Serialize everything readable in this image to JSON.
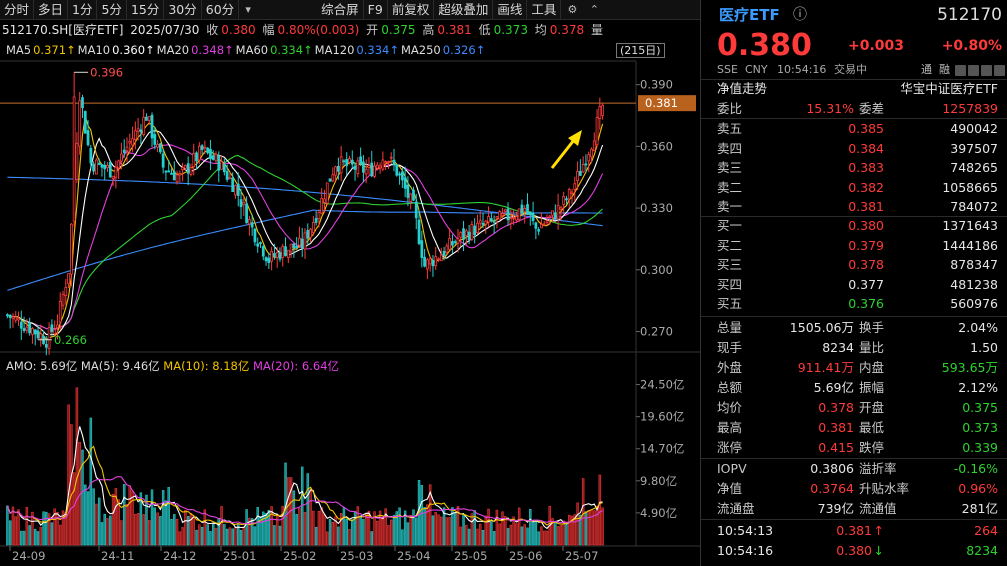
{
  "toolbar": {
    "tabs": [
      "分时",
      "多日",
      "1分",
      "5分",
      "15分",
      "30分",
      "60分"
    ],
    "more_icon": "caret-down-icon",
    "actions": [
      "综合屏",
      "F9",
      "前复权",
      "超级叠加",
      "画线",
      "工具"
    ],
    "icons": [
      "gear-icon",
      "chevron-up-icon"
    ]
  },
  "info": {
    "code": "512170.SH[医疗ETF]",
    "date": "2025/07/30",
    "close_label": "收",
    "close": "0.380",
    "change_label": "幅",
    "change": "0.80%(0.003)",
    "open_label": "开",
    "open": "0.375",
    "high_label": "高",
    "high": "0.381",
    "low_label": "低",
    "low": "0.373",
    "avg_label": "均",
    "avg": "0.378",
    "vol_label": "量"
  },
  "ma_legend": [
    {
      "label": "MA5",
      "value": "0.371↑",
      "color": "#f2c400"
    },
    {
      "label": "MA10",
      "value": "0.360↑",
      "color": "#ffffff"
    },
    {
      "label": "MA20",
      "value": "0.348↑",
      "color": "#e040e0"
    },
    {
      "label": "MA60",
      "value": "0.334↑",
      "color": "#2fd12f"
    },
    {
      "label": "MA120",
      "value": "0.334↑",
      "color": "#3b8cff"
    },
    {
      "label": "MA250",
      "value": "0.326↑",
      "color": "#3b8cff"
    }
  ],
  "days_badge": "(215日)",
  "chart_data": {
    "type": "candlestick",
    "price_axis": {
      "ticks": [
        "0.390",
        "0.360",
        "0.330",
        "0.300",
        "0.270"
      ],
      "range": [
        0.262,
        0.401
      ]
    },
    "current_price_tag": "0.381",
    "annotations": {
      "high": "0.396",
      "low": "0.266"
    },
    "date_ticks": [
      "24-09",
      "24-11",
      "24-12",
      "25-01",
      "25-02",
      "25-03",
      "25-04",
      "25-05",
      "25-06",
      "25-07"
    ],
    "amo": {
      "label": "AMO: 5.69亿",
      "ma5": "MA(5): 9.46亿",
      "ma10": "MA(10): 8.18亿",
      "ma20": "MA(20): 6.64亿",
      "ticks": [
        "24.50亿",
        "19.60亿",
        "14.70亿",
        "9.80亿",
        "4.90亿"
      ],
      "range": [
        0,
        25.5
      ]
    }
  },
  "panel": {
    "name": "医疗ETF",
    "code": "512170",
    "price": "0.380",
    "chg": "+0.003",
    "pct": "+0.80%",
    "exchange": "SSE",
    "currency": "CNY",
    "time": "10:54:16",
    "status": "交易中",
    "tags": [
      "通",
      "融"
    ],
    "trend_label": "净值走势",
    "tracking": "华宝中证医疗ETF",
    "weibi_label": "委比",
    "weibi": "15.31%",
    "weicha_label": "委差",
    "weicha": "1257839",
    "asks": [
      {
        "label": "卖五",
        "price": "0.385",
        "vol": "490042"
      },
      {
        "label": "卖四",
        "price": "0.384",
        "vol": "397507"
      },
      {
        "label": "卖三",
        "price": "0.383",
        "vol": "748265"
      },
      {
        "label": "卖二",
        "price": "0.382",
        "vol": "1058665"
      },
      {
        "label": "卖一",
        "price": "0.381",
        "vol": "784072"
      }
    ],
    "bids": [
      {
        "label": "买一",
        "price": "0.380",
        "vol": "1371643"
      },
      {
        "label": "买二",
        "price": "0.379",
        "vol": "1444186"
      },
      {
        "label": "买三",
        "price": "0.378",
        "vol": "878347"
      },
      {
        "label": "买四",
        "price": "0.377",
        "vol": "481238"
      },
      {
        "label": "买五",
        "price": "0.376",
        "vol": "560976"
      }
    ],
    "stats": [
      {
        "l1": "总量",
        "v1": "1505.06万",
        "c1": "w",
        "l2": "换手",
        "v2": "2.04%",
        "c2": "w"
      },
      {
        "l1": "现手",
        "v1": "8234",
        "c1": "w",
        "l2": "量比",
        "v2": "1.50",
        "c2": "w"
      },
      {
        "l1": "外盘",
        "v1": "911.41万",
        "c1": "r",
        "l2": "内盘",
        "v2": "593.65万",
        "c2": "g"
      },
      {
        "l1": "总额",
        "v1": "5.69亿",
        "c1": "w",
        "l2": "振幅",
        "v2": "2.12%",
        "c2": "w"
      },
      {
        "l1": "均价",
        "v1": "0.378",
        "c1": "r",
        "l2": "开盘",
        "v2": "0.375",
        "c2": "g"
      },
      {
        "l1": "最高",
        "v1": "0.381",
        "c1": "r",
        "l2": "最低",
        "v2": "0.373",
        "c2": "g"
      },
      {
        "l1": "涨停",
        "v1": "0.415",
        "c1": "r",
        "l2": "跌停",
        "v2": "0.339",
        "c2": "g"
      }
    ],
    "iopv": [
      {
        "l1": "IOPV",
        "v1": "0.3806",
        "c1": "w",
        "l2": "溢折率",
        "v2": "-0.16%",
        "c2": "g"
      },
      {
        "l1": "净值",
        "v1": "0.3764",
        "c1": "r",
        "l2": "升贴水率",
        "v2": "0.96%",
        "c2": "r"
      },
      {
        "l1": "流通盘",
        "v1": "739亿",
        "c1": "w",
        "l2": "流通值",
        "v2": "281亿",
        "c2": "w"
      }
    ],
    "ticks": [
      {
        "time": "10:54:13",
        "price": "0.381",
        "arrow": "↑",
        "c": "r",
        "vol": "264",
        "vc": "r"
      },
      {
        "time": "10:54:16",
        "price": "0.380",
        "arrow": "↓",
        "c": "r",
        "vol": "8234",
        "vc": "g"
      }
    ]
  }
}
